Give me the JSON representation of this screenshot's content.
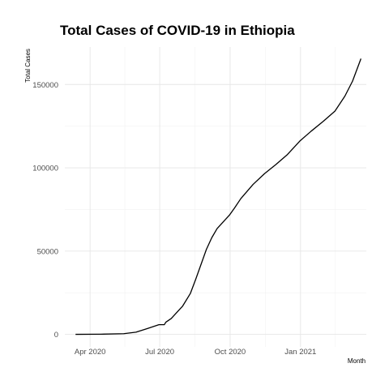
{
  "chart_data": {
    "type": "line",
    "title": "Total Cases of COVID-19 in Ethiopia",
    "xlabel": "Month",
    "ylabel": "Total Cases",
    "x_ticks": [
      {
        "date": "2020-04-01",
        "label": "Apr 2020"
      },
      {
        "date": "2020-07-01",
        "label": "Jul 2020"
      },
      {
        "date": "2020-10-01",
        "label": "Oct 2020"
      },
      {
        "date": "2021-01-01",
        "label": "Jan 2021"
      }
    ],
    "y_ticks": [
      {
        "value": 0,
        "label": "0"
      },
      {
        "value": 50000,
        "label": "50000"
      },
      {
        "value": 100000,
        "label": "100000"
      },
      {
        "value": 150000,
        "label": "150000"
      }
    ],
    "xlim": [
      "2020-02-28",
      "2021-03-28"
    ],
    "ylim": [
      -7500,
      172500
    ],
    "grid": true,
    "legend": "none",
    "series": [
      {
        "color": "#000000",
        "points": [
          [
            "2020-03-13",
            0
          ],
          [
            "2020-04-15",
            100
          ],
          [
            "2020-05-15",
            400
          ],
          [
            "2020-05-31",
            1300
          ],
          [
            "2020-06-15",
            3500
          ],
          [
            "2020-06-30",
            5800
          ],
          [
            "2020-07-07",
            5800
          ],
          [
            "2020-07-09",
            7300
          ],
          [
            "2020-07-16",
            9500
          ],
          [
            "2020-07-31",
            17000
          ],
          [
            "2020-08-10",
            24500
          ],
          [
            "2020-08-17",
            33000
          ],
          [
            "2020-08-24",
            42000
          ],
          [
            "2020-08-31",
            51000
          ],
          [
            "2020-09-07",
            58000
          ],
          [
            "2020-09-14",
            63500
          ],
          [
            "2020-09-21",
            67000
          ],
          [
            "2020-09-30",
            71500
          ],
          [
            "2020-10-07",
            76000
          ],
          [
            "2020-10-15",
            81500
          ],
          [
            "2020-10-31",
            90000
          ],
          [
            "2020-11-15",
            96500
          ],
          [
            "2020-11-30",
            102000
          ],
          [
            "2020-12-15",
            108000
          ],
          [
            "2020-12-31",
            116000
          ],
          [
            "2021-01-15",
            122000
          ],
          [
            "2021-01-31",
            128000
          ],
          [
            "2021-02-15",
            134000
          ],
          [
            "2021-02-28",
            143000
          ],
          [
            "2021-03-10",
            152000
          ],
          [
            "2021-03-21",
            165500
          ]
        ]
      }
    ]
  }
}
